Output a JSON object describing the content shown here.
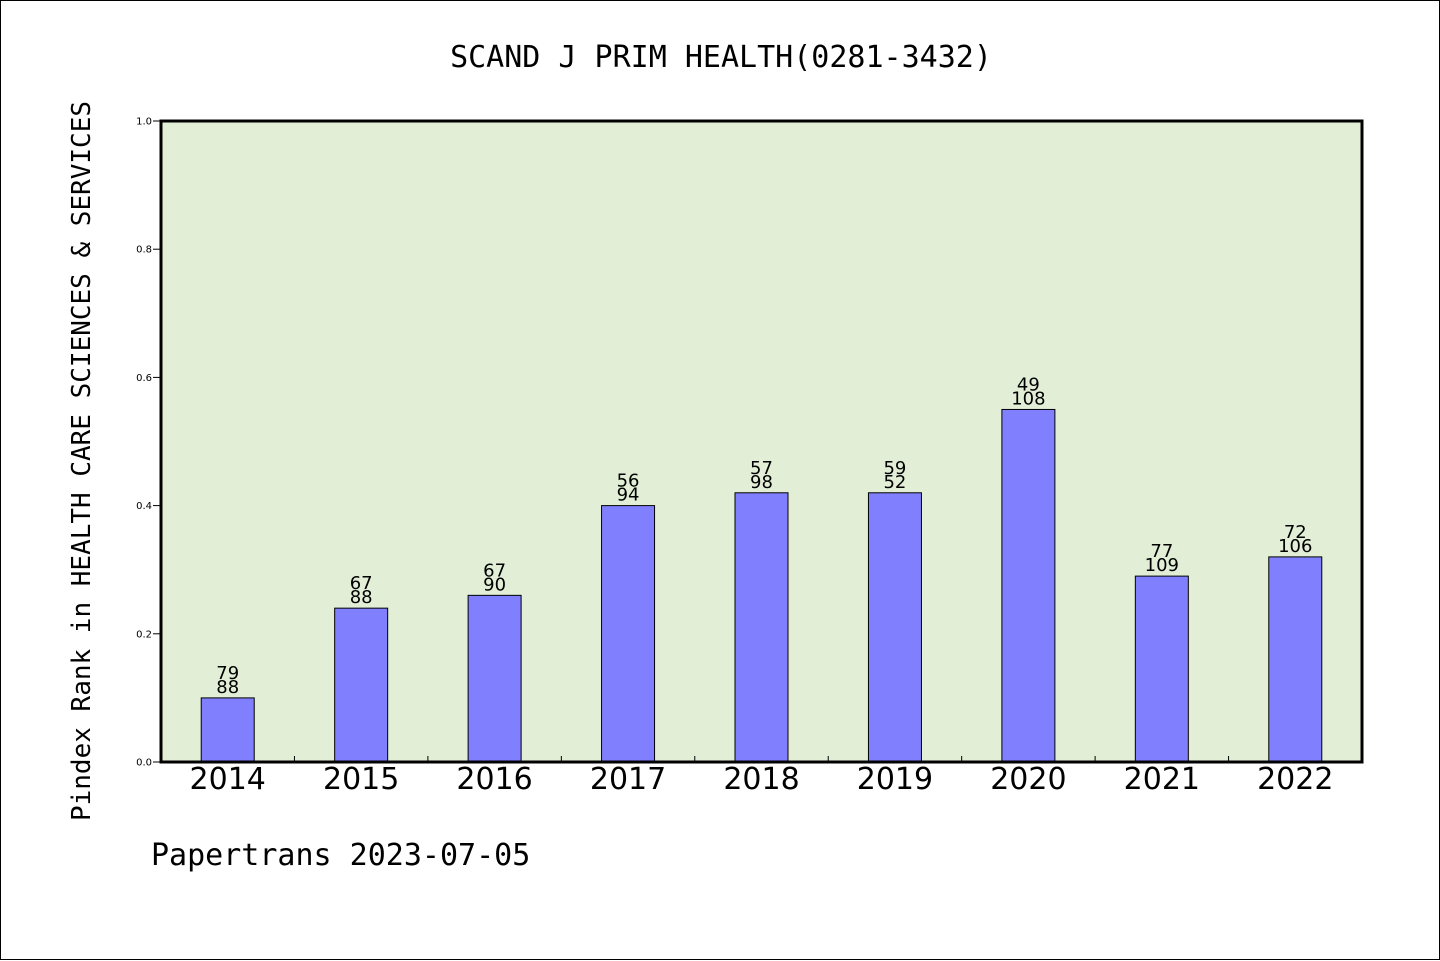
{
  "chart_data": {
    "type": "bar",
    "title": "SCAND J PRIM HEALTH(0281-3432)",
    "ylabel": "Pindex Rank in HEALTH CARE SCIENCES & SERVICES",
    "xlabel": "",
    "ylim": [
      0.0,
      1.0
    ],
    "y_ticks": [
      "0.0",
      "0.2",
      "0.4",
      "0.6",
      "0.8",
      "1.0"
    ],
    "categories": [
      "2014",
      "2015",
      "2016",
      "2017",
      "2018",
      "2019",
      "2020",
      "2021",
      "2022"
    ],
    "values": [
      0.1,
      0.24,
      0.26,
      0.4,
      0.42,
      0.42,
      0.55,
      0.29,
      0.32
    ],
    "label_top": [
      "79",
      "67",
      "67",
      "56",
      "57",
      "59",
      "49",
      "77",
      "72"
    ],
    "label_bottom": [
      "88",
      "88",
      "90",
      "94",
      "98",
      "52",
      "108",
      "109",
      "106"
    ],
    "grid": false,
    "legend": "none",
    "colors": {
      "bar_fill": "#8080ff",
      "plot_background": "#e2efd6",
      "frame": "#000000"
    }
  },
  "footer": {
    "text": "Papertrans 2023-07-05"
  }
}
